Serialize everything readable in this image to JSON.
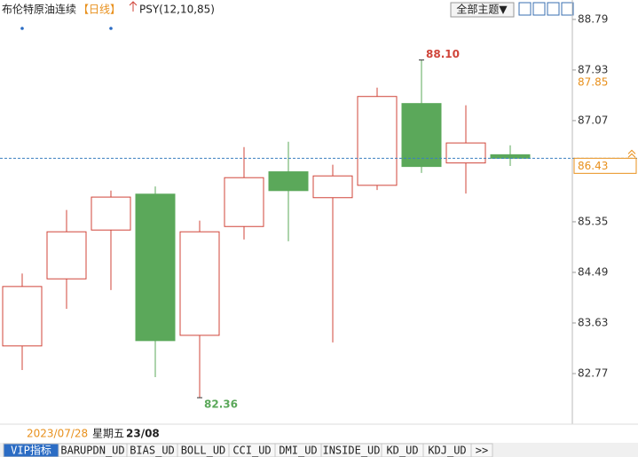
{
  "header": {
    "title": "布伦特原油连续",
    "period": "【日线】",
    "indicator": "PSY(12,10,85)",
    "theme_button": "全部主题▼"
  },
  "chart_data": {
    "type": "candlestick",
    "open": [
      83.24,
      84.38,
      85.21,
      85.82,
      83.42,
      85.27,
      86.2,
      85.76,
      85.97,
      87.36,
      86.35,
      86.49
    ],
    "high": [
      84.47,
      85.55,
      85.88,
      85.95,
      85.37,
      86.62,
      86.71,
      86.32,
      87.63,
      88.1,
      87.33,
      86.65
    ],
    "low": [
      82.83,
      83.87,
      84.19,
      82.71,
      82.36,
      85.05,
      85.02,
      83.3,
      85.89,
      86.18,
      85.83,
      86.3
    ],
    "close": [
      84.25,
      85.18,
      85.77,
      83.33,
      85.18,
      86.1,
      85.88,
      86.13,
      87.48,
      86.29,
      86.69,
      86.43
    ],
    "high_value_labels": [
      null,
      null,
      null,
      null,
      null,
      null,
      null,
      null,
      null,
      "88.10",
      null,
      null
    ],
    "low_value_labels": [
      null,
      null,
      null,
      null,
      "82.36",
      null,
      null,
      null,
      null,
      null,
      null,
      null
    ],
    "up_color": "#d0453a",
    "down_color": "#5ba85a",
    "ylim": [
      81.91,
      89.12
    ],
    "yticks": [
      88.79,
      87.93,
      87.07,
      85.35,
      84.49,
      83.63,
      82.77
    ],
    "last_price": 86.43,
    "ref_price": 87.85
  },
  "cursor_info": {
    "date": "2023/07/28",
    "weekday": "星期五",
    "time": "23/08"
  },
  "tabs": [
    "VIP指标",
    "BARUPDN_UD",
    "BIAS_UD",
    "BOLL_UD",
    "CCI_UD",
    "DMI_UD",
    "INSIDE_UD",
    "KD_UD",
    "KDJ_UD",
    ">>"
  ]
}
